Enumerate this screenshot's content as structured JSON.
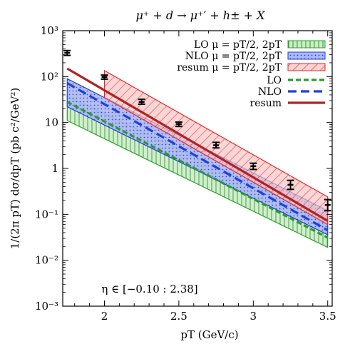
{
  "chart_data": {
    "type": "line",
    "title": "μ⁺ + d → μ⁺′ + h± + X",
    "xlabel": "pT (GeV/c)",
    "ylabel": "1/(2π pT) dσ/dpT (pb c²/GeV²)",
    "annotation": "η ∈ [−0.10 : 2.38]",
    "xlim": [
      1.72,
      3.53
    ],
    "ylim": [
      0.001,
      1000
    ],
    "yscale": "log",
    "grid": false,
    "legend_position": "top-right",
    "x_ticks": [
      2,
      2.5,
      3,
      3.5
    ],
    "x_tick_labels": [
      "2",
      "2.5",
      "3",
      "3.5"
    ],
    "y_ticks": [
      0.001,
      0.01,
      0.1,
      1,
      10,
      100,
      1000
    ],
    "y_tick_labels": [
      "10⁻³",
      "10⁻²",
      "10⁻¹",
      "1",
      "10",
      "10²",
      "10³"
    ],
    "bands": [
      {
        "name": "LO μ = pT/2, 2pT",
        "color": "#2ca02c",
        "pattern": "vertical-hatch",
        "x": [
          1.75,
          3.5
        ],
        "lower": [
          11,
          0.019
        ],
        "upper": [
          38,
          0.075
        ]
      },
      {
        "name": "NLO μ = pT/2, 2pT",
        "color": "#1f3fe0",
        "pattern": "dots",
        "x": [
          1.75,
          3.5
        ],
        "lower": [
          22,
          0.036
        ],
        "upper": [
          90,
          0.12
        ]
      },
      {
        "name": "resum μ = pT/2, 2pT",
        "color": "#e22a2a",
        "pattern": "diagonal-hatch",
        "x": [
          2.0,
          3.5
        ],
        "lower": [
          35,
          0.06
        ],
        "upper": [
          135,
          0.24
        ]
      }
    ],
    "series": [
      {
        "name": "LO",
        "color": "#2c9a2c",
        "style": "dashed-thick",
        "x": [
          1.75,
          3.5
        ],
        "y": [
          28,
          0.031
        ]
      },
      {
        "name": "NLO",
        "color": "#1f3fe0",
        "style": "dashed",
        "x": [
          1.75,
          3.5
        ],
        "y": [
          72,
          0.045
        ]
      },
      {
        "name": "resum",
        "color": "#b22222",
        "style": "solid",
        "x": [
          1.75,
          3.5
        ],
        "y": [
          150,
          0.072
        ]
      }
    ],
    "data_points": {
      "x": [
        1.75,
        2.0,
        2.25,
        2.5,
        2.75,
        3.0,
        3.25,
        3.5
      ],
      "y": [
        330,
        98,
        28,
        9.2,
        3.2,
        1.12,
        0.44,
        0.16
      ],
      "err_low": [
        290,
        88,
        25,
        8.2,
        2.8,
        0.95,
        0.35,
        0.12
      ],
      "err_high": [
        370,
        108,
        32,
        10.2,
        3.7,
        1.3,
        0.55,
        0.21
      ]
    },
    "legend": {
      "entries": [
        "LO μ = pT/2, 2pT",
        "NLO μ = pT/2, 2pT",
        "resum μ = pT/2, 2pT",
        "LO",
        "NLO",
        "resum"
      ]
    }
  }
}
